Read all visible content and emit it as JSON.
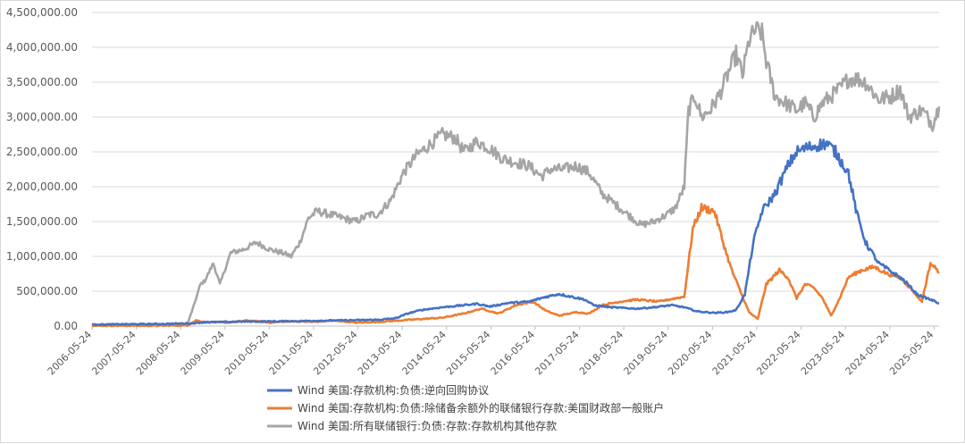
{
  "chart_data": {
    "type": "line",
    "title": "",
    "xlabel": "",
    "ylabel": "",
    "ylim": [
      0,
      4500000
    ],
    "y_ticks": [
      0,
      500000,
      1000000,
      1500000,
      2000000,
      2500000,
      3000000,
      3500000,
      4000000,
      4500000
    ],
    "y_tick_labels": [
      "0.00",
      "500,000.00",
      "1,000,000.00",
      "1,500,000.00",
      "2,000,000.00",
      "2,500,000.00",
      "3,000,000.00",
      "3,500,000.00",
      "4,000,000.00",
      "4,500,000.00"
    ],
    "x_tick_labels": [
      "2006-05-24",
      "2007-05-24",
      "2008-05-24",
      "2009-05-24",
      "2010-05-24",
      "2011-05-24",
      "2012-05-24",
      "2013-05-24",
      "2014-05-24",
      "2015-05-24",
      "2016-05-24",
      "2017-05-24",
      "2018-05-24",
      "2019-05-24",
      "2020-05-24",
      "2021-05-24",
      "2022-05-24",
      "2023-05-24",
      "2024-05-24",
      "2025-05-24"
    ],
    "x_start": 2006.39,
    "x_end": 2026.0,
    "grid": "horizontal",
    "legend_position": "bottom",
    "series": [
      {
        "name": "Wind 美国:存款机构:负债:逆向回购协议",
        "color": "#4472C4",
        "x": [
          2006.39,
          2007.0,
          2008.0,
          2008.7,
          2009.0,
          2010.0,
          2011.0,
          2012.0,
          2013.0,
          2013.4,
          2013.7,
          2014.0,
          2014.5,
          2015.0,
          2015.3,
          2015.6,
          2016.0,
          2016.5,
          2016.9,
          2017.2,
          2017.5,
          2017.8,
          2018.0,
          2018.4,
          2018.7,
          2019.0,
          2019.4,
          2019.8,
          2020.1,
          2020.4,
          2020.8,
          2021.1,
          2021.3,
          2021.5,
          2021.7,
          2021.9,
          2022.2,
          2022.5,
          2022.7,
          2022.9,
          2023.2,
          2023.4,
          2023.6,
          2023.9,
          2024.1,
          2024.3,
          2024.6,
          2024.9,
          2025.2,
          2025.5,
          2025.8,
          2026.0
        ],
        "y": [
          20000,
          25000,
          30000,
          40000,
          55000,
          65000,
          70000,
          80000,
          90000,
          110000,
          180000,
          230000,
          270000,
          300000,
          320000,
          280000,
          330000,
          350000,
          420000,
          460000,
          420000,
          380000,
          300000,
          270000,
          260000,
          250000,
          270000,
          300000,
          270000,
          210000,
          190000,
          200000,
          230000,
          450000,
          1200000,
          1650000,
          1900000,
          2300000,
          2500000,
          2550000,
          2600000,
          2620000,
          2500000,
          2200000,
          1600000,
          1200000,
          900000,
          780000,
          650000,
          450000,
          380000,
          330000
        ]
      },
      {
        "name": "Wind 美国:存款机构:负债:除储备余额外的联储银行存款:美国财政部一般账户",
        "color": "#ED7D31",
        "x": [
          2006.39,
          2007.0,
          2008.0,
          2008.6,
          2008.8,
          2009.0,
          2009.5,
          2010.0,
          2010.5,
          2011.0,
          2011.5,
          2012.0,
          2012.5,
          2013.0,
          2013.5,
          2014.0,
          2014.5,
          2015.0,
          2015.4,
          2015.8,
          2016.2,
          2016.6,
          2016.9,
          2017.2,
          2017.6,
          2017.9,
          2018.2,
          2018.6,
          2019.0,
          2019.5,
          2019.9,
          2020.1,
          2020.3,
          2020.5,
          2020.8,
          2021.0,
          2021.2,
          2021.4,
          2021.6,
          2021.8,
          2022.0,
          2022.3,
          2022.5,
          2022.7,
          2022.9,
          2023.1,
          2023.3,
          2023.5,
          2023.7,
          2023.9,
          2024.2,
          2024.5,
          2024.8,
          2025.1,
          2025.4,
          2025.6,
          2025.8,
          2026.0
        ],
        "y": [
          5000,
          5000,
          5000,
          10000,
          80000,
          60000,
          50000,
          80000,
          50000,
          70000,
          60000,
          80000,
          50000,
          60000,
          80000,
          100000,
          120000,
          180000,
          250000,
          180000,
          300000,
          350000,
          220000,
          150000,
          200000,
          180000,
          300000,
          350000,
          380000,
          350000,
          400000,
          420000,
          1400000,
          1700000,
          1650000,
          1200000,
          800000,
          500000,
          200000,
          100000,
          600000,
          800000,
          700000,
          400000,
          600000,
          550000,
          400000,
          150000,
          400000,
          700000,
          800000,
          850000,
          750000,
          700000,
          500000,
          350000,
          900000,
          780000
        ]
      },
      {
        "name": "Wind 美国:所有联储银行:负债:存款:存款机构其他存款",
        "color": "#A5A5A5",
        "x": [
          2006.39,
          2007.0,
          2008.0,
          2008.6,
          2008.75,
          2008.9,
          2009.0,
          2009.2,
          2009.35,
          2009.6,
          2009.9,
          2010.2,
          2010.5,
          2010.8,
          2011.0,
          2011.2,
          2011.4,
          2011.6,
          2011.9,
          2012.2,
          2012.5,
          2012.8,
          2013.0,
          2013.3,
          2013.6,
          2013.9,
          2014.2,
          2014.5,
          2014.8,
          2015.0,
          2015.3,
          2015.6,
          2015.9,
          2016.2,
          2016.5,
          2016.8,
          2017.0,
          2017.3,
          2017.6,
          2017.9,
          2018.2,
          2018.5,
          2018.8,
          2019.1,
          2019.4,
          2019.7,
          2019.9,
          2020.1,
          2020.2,
          2020.35,
          2020.5,
          2020.7,
          2020.9,
          2021.1,
          2021.3,
          2021.45,
          2021.6,
          2021.75,
          2021.9,
          2022.0,
          2022.2,
          2022.45,
          2022.7,
          2022.9,
          2023.1,
          2023.3,
          2023.5,
          2023.7,
          2023.9,
          2024.1,
          2024.3,
          2024.6,
          2024.9,
          2025.1,
          2025.3,
          2025.6,
          2025.85,
          2026.0
        ],
        "y": [
          20000,
          20000,
          20000,
          30000,
          300000,
          600000,
          650000,
          900000,
          600000,
          1050000,
          1100000,
          1200000,
          1100000,
          1050000,
          1000000,
          1200000,
          1550000,
          1650000,
          1600000,
          1550000,
          1500000,
          1600000,
          1600000,
          1800000,
          2200000,
          2450000,
          2600000,
          2750000,
          2700000,
          2500000,
          2650000,
          2550000,
          2400000,
          2350000,
          2300000,
          2150000,
          2250000,
          2250000,
          2300000,
          2200000,
          1900000,
          1750000,
          1600000,
          1450000,
          1500000,
          1600000,
          1700000,
          2000000,
          3100000,
          3300000,
          3000000,
          3100000,
          3300000,
          3600000,
          3900000,
          3600000,
          4100000,
          4250000,
          4200000,
          3800000,
          3300000,
          3200000,
          3100000,
          3200000,
          3000000,
          3200000,
          3300000,
          3400000,
          3550000,
          3550000,
          3500000,
          3250000,
          3300000,
          3400000,
          3000000,
          3100000,
          2900000,
          3150000
        ]
      }
    ]
  }
}
